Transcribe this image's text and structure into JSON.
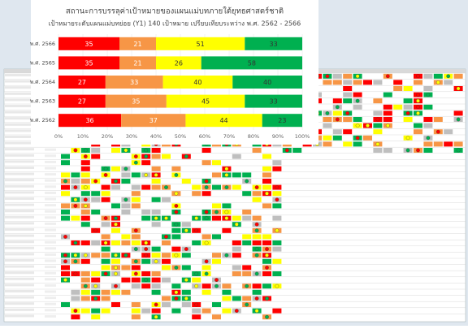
{
  "chart_data": {
    "type": "stacked_percent_barh",
    "title": "สถานะการบรรลุค่าเป้าหมายของแผนแม่บทภายใต้ยุทธศาสตร์ชาติ",
    "subtitle": "เป้าหมายระดับแผนแม่บทย่อย (Y1) 140 เป้าหมาย เปรียบเทียบระหว่าง พ.ศ. 2562 - 2566",
    "categories": [
      "พ.ศ. 2566",
      "พ.ศ. 2565",
      "พ.ศ. 2564",
      "พ.ศ. 2563",
      "พ.ศ. 2562"
    ],
    "series": [
      {
        "color": "#ff0000",
        "values": [
          35,
          35,
          27,
          27,
          36
        ]
      },
      {
        "color": "#f79646",
        "values": [
          21,
          21,
          33,
          35,
          37
        ]
      },
      {
        "color": "#ffff00",
        "values": [
          51,
          26,
          40,
          45,
          44
        ]
      },
      {
        "color": "#00b050",
        "values": [
          33,
          58,
          40,
          33,
          23
        ]
      }
    ],
    "xlim": [
      0,
      100
    ],
    "xticks": [
      {
        "value": 0,
        "label": "0%"
      },
      {
        "value": 10,
        "label": "10%"
      },
      {
        "value": 20,
        "label": "20%"
      },
      {
        "value": 30,
        "label": "30%"
      },
      {
        "value": 40,
        "label": "40%"
      },
      {
        "value": 50,
        "label": "50%"
      },
      {
        "value": 60,
        "label": "60%"
      },
      {
        "value": 70,
        "label": "70%"
      },
      {
        "value": 80,
        "label": "80%"
      },
      {
        "value": 90,
        "label": "90%"
      },
      {
        "value": 100,
        "label": "100%"
      }
    ]
  }
}
